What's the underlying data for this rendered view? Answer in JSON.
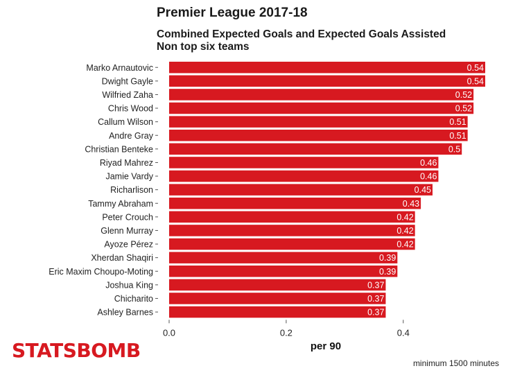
{
  "chart_data": {
    "type": "bar",
    "orientation": "horizontal",
    "title": "Premier League 2017-18",
    "subtitle_lines": [
      "Combined Expected Goals and Expected Goals Assisted",
      "Non top six teams"
    ],
    "xlabel": "per 90",
    "xlim": [
      0,
      0.54
    ],
    "xticks": [
      "0.0",
      "0.2",
      "0.4"
    ],
    "bar_color": "#d71920",
    "categories": [
      "Marko Arnautovic",
      "Dwight Gayle",
      "Wilfried Zaha",
      "Chris Wood",
      "Callum Wilson",
      "Andre Gray",
      "Christian Benteke",
      "Riyad Mahrez",
      "Jamie Vardy",
      "Richarlison",
      "Tammy Abraham",
      "Peter Crouch",
      "Glenn Murray",
      "Ayoze Pérez",
      "Xherdan Shaqiri",
      "Eric Maxim Choupo-Moting",
      "Joshua King",
      "Chicharito",
      "Ashley Barnes"
    ],
    "values": [
      0.54,
      0.54,
      0.52,
      0.52,
      0.51,
      0.51,
      0.5,
      0.46,
      0.46,
      0.45,
      0.43,
      0.42,
      0.42,
      0.42,
      0.39,
      0.39,
      0.37,
      0.37,
      0.37
    ],
    "value_labels": [
      "0.54",
      "0.54",
      "0.52",
      "0.52",
      "0.51",
      "0.51",
      "0.5",
      "0.46",
      "0.46",
      "0.45",
      "0.43",
      "0.42",
      "0.42",
      "0.42",
      "0.39",
      "0.39",
      "0.37",
      "0.37",
      "0.37"
    ],
    "caption": "minimum 1500 minutes",
    "grid": false
  },
  "logo": "STATSBOMB"
}
